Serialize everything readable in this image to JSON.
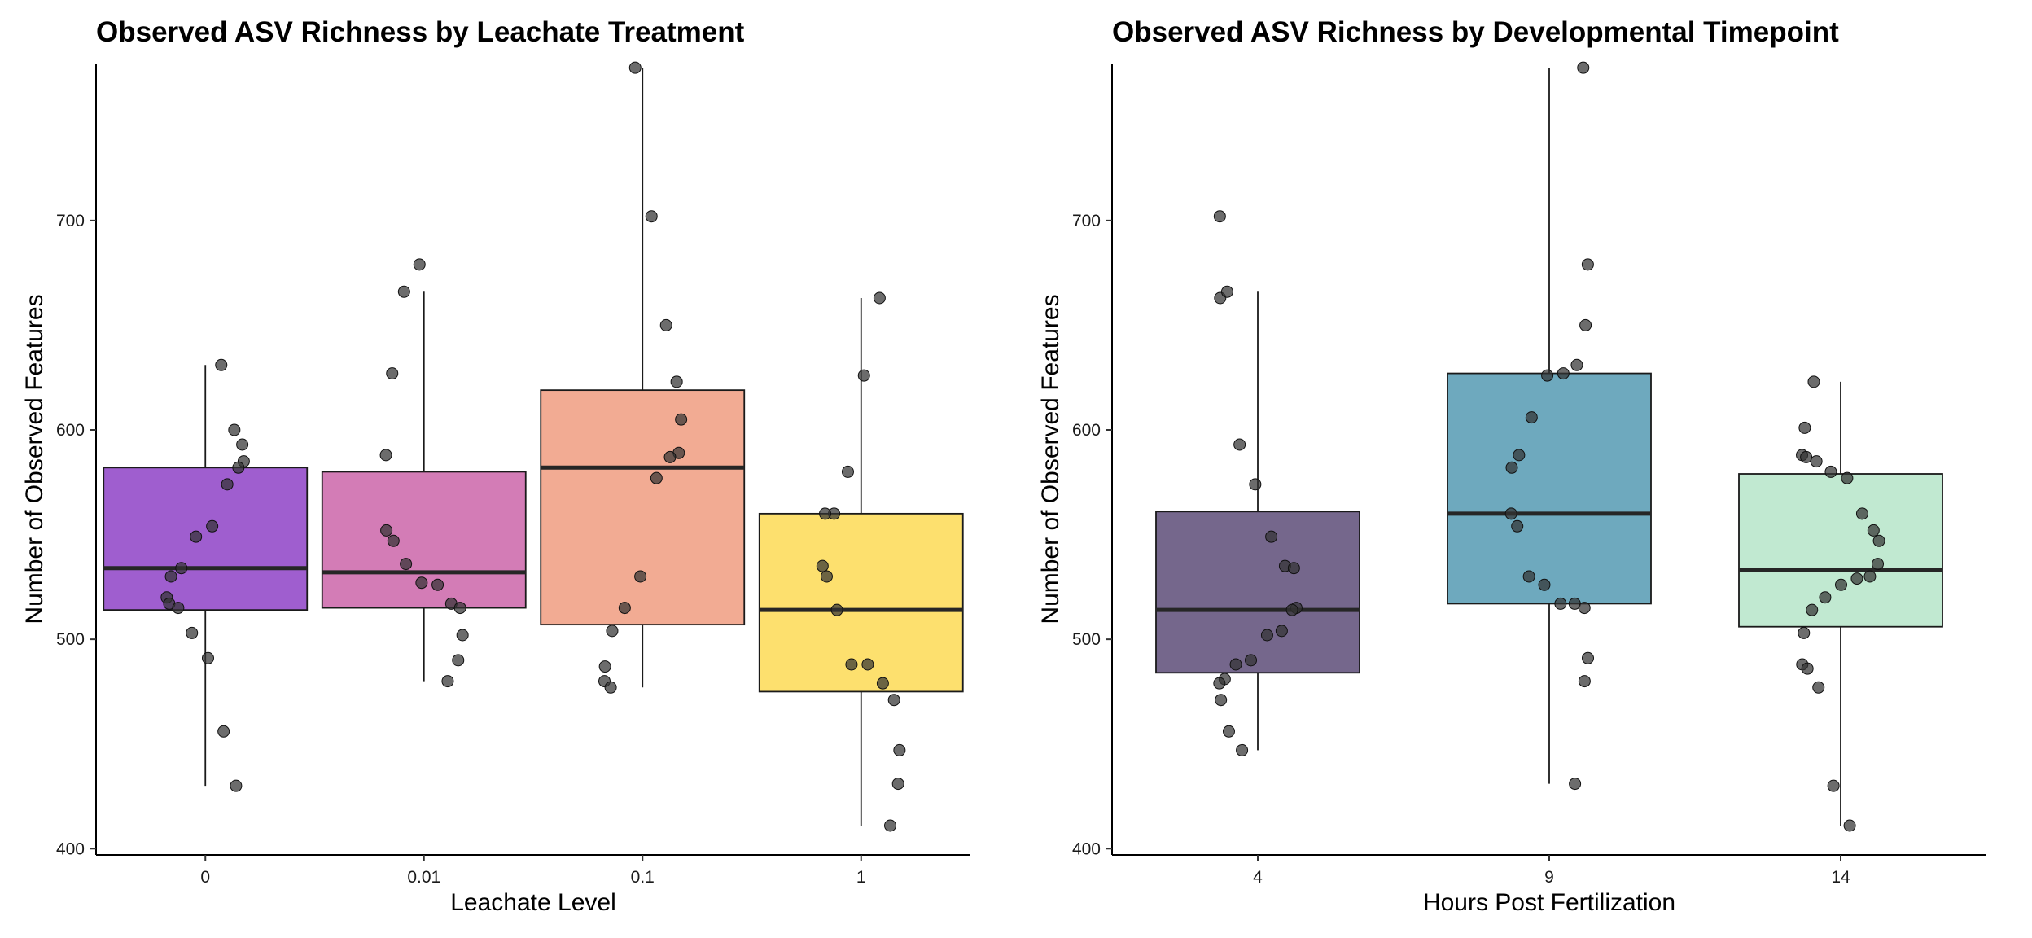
{
  "chart_data": [
    {
      "type": "box",
      "title": "Observed ASV Richness by Leachate Treatment",
      "xlabel": "Leachate Level",
      "ylabel": "Number of Observed Features",
      "categories": [
        "0",
        "0.01",
        "0.1",
        "1"
      ],
      "yticks": [
        400,
        500,
        600,
        700
      ],
      "ylim": [
        397,
        775
      ],
      "grid": false,
      "legend": "none",
      "colors": [
        "#8a3bc4",
        "#c95fa6",
        "#ef987b",
        "#fdd94e"
      ],
      "boxes": [
        {
          "category": "0",
          "min": 430,
          "q1": 514,
          "median": 534,
          "q3": 582,
          "max": 631
        },
        {
          "category": "0.01",
          "min": 480,
          "q1": 515,
          "median": 532,
          "q3": 580,
          "max": 666
        },
        {
          "category": "0.1",
          "min": 477,
          "q1": 507,
          "median": 582,
          "q3": 619,
          "max": 773
        },
        {
          "category": "1",
          "min": 411,
          "q1": 475,
          "median": 514,
          "q3": 560,
          "max": 663
        }
      ],
      "points": [
        {
          "category": "0",
          "values": [
            631,
            600,
            593,
            585,
            582,
            574,
            554,
            549,
            534,
            530,
            520,
            517,
            515,
            503,
            491,
            456,
            430
          ]
        },
        {
          "category": "0.01",
          "values": [
            679,
            666,
            627,
            588,
            552,
            547,
            536,
            527,
            526,
            517,
            515,
            502,
            490,
            480
          ]
        },
        {
          "category": "0.1",
          "values": [
            773,
            702,
            650,
            623,
            605,
            589,
            587,
            577,
            530,
            515,
            504,
            487,
            480,
            477
          ]
        },
        {
          "category": "1",
          "values": [
            663,
            626,
            580,
            560,
            560,
            535,
            530,
            514,
            488,
            488,
            479,
            471,
            447,
            431,
            411
          ]
        }
      ]
    },
    {
      "type": "box",
      "title": "Observed ASV Richness by Developmental Timepoint",
      "xlabel": "Hours Post Fertilization",
      "ylabel": "Number of Observed Features",
      "categories": [
        "4",
        "9",
        "14"
      ],
      "yticks": [
        400,
        500,
        600,
        700
      ],
      "ylim": [
        397,
        775
      ],
      "grid": false,
      "legend": "none",
      "colors": [
        "#574673",
        "#4e96b0",
        "#b3e4c7"
      ],
      "boxes": [
        {
          "category": "4",
          "min": 447,
          "q1": 484,
          "median": 514,
          "q3": 561,
          "max": 666
        },
        {
          "category": "9",
          "min": 431,
          "q1": 517,
          "median": 560,
          "q3": 627,
          "max": 773
        },
        {
          "category": "14",
          "min": 411,
          "q1": 506,
          "median": 533,
          "q3": 579,
          "max": 623
        }
      ],
      "points": [
        {
          "category": "4",
          "values": [
            702,
            663,
            666,
            593,
            574,
            549,
            535,
            534,
            515,
            514,
            504,
            502,
            490,
            488,
            481,
            479,
            471,
            456,
            447
          ]
        },
        {
          "category": "9",
          "values": [
            773,
            679,
            650,
            631,
            627,
            626,
            606,
            588,
            582,
            560,
            554,
            530,
            526,
            517,
            517,
            515,
            491,
            480,
            431
          ]
        },
        {
          "category": "14",
          "values": [
            623,
            601,
            588,
            587,
            585,
            580,
            577,
            560,
            552,
            547,
            536,
            530,
            529,
            526,
            520,
            514,
            503,
            488,
            486,
            477,
            430,
            411
          ]
        }
      ]
    }
  ]
}
